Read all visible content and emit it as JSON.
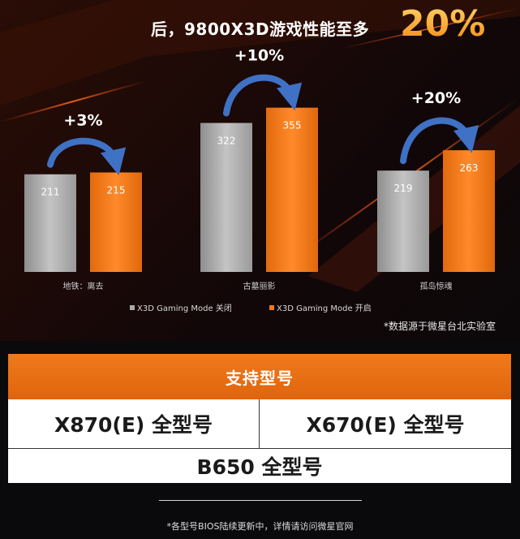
{
  "title_text": "后，9800X3D游戏性能至多",
  "title_highlight": "20%",
  "chart_data": {
    "type": "bar",
    "categories": [
      "地铁：离去",
      "古墓丽影",
      "孤岛惊魂"
    ],
    "series": [
      {
        "name": "X3D Gaming Mode 关闭",
        "values": [
          211,
          322,
          219
        ]
      },
      {
        "name": "X3D Gaming Mode 开启",
        "values": [
          215,
          355,
          263
        ]
      }
    ],
    "annotations": [
      "+3%",
      "+10%",
      "+20%"
    ],
    "legend_position": "bottom",
    "grid": false
  },
  "colors": {
    "series_off": "#a9a9a9",
    "series_on": "#ee7a1a",
    "arrow": "#3f71c4",
    "accent": "#f28a12"
  },
  "note": "*数据源于微星台北实验室",
  "support": {
    "header": "支持型号",
    "models": [
      "X870(E) 全型号",
      "X670(E) 全型号",
      "B650 全型号"
    ]
  },
  "footnote": "*各型号BIOS陆续更新中，详情请访问微星官网"
}
